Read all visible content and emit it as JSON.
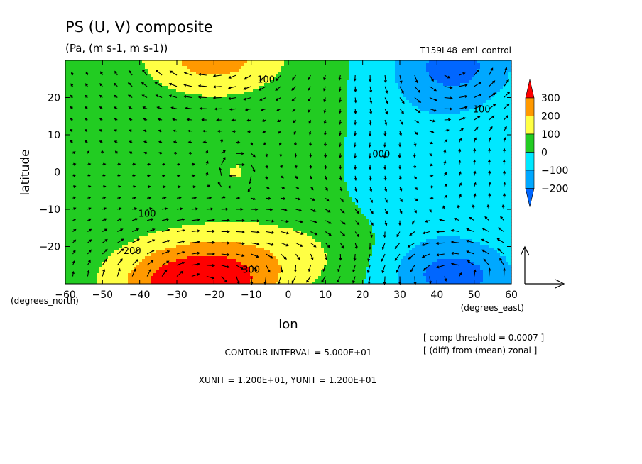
{
  "chart_data": {
    "type": "heatmap",
    "title": "PS (U, V) composite",
    "subtitle": "(Pa, (m s-1, m s-1))",
    "run_label": "T159L48_eml_control",
    "xlabel": "lon",
    "ylabel": "latitude",
    "x_unit_label": "(degrees_east)",
    "y_unit_label": "(degrees_north)",
    "xlim": [
      -60,
      60
    ],
    "ylim": [
      -30,
      30
    ],
    "x_ticks": [
      -60,
      -50,
      -40,
      -30,
      -20,
      -10,
      0,
      10,
      20,
      30,
      40,
      50,
      60
    ],
    "y_ticks": [
      -20,
      -10,
      0,
      10,
      20
    ],
    "x_tick_labels": [
      "−60",
      "−50",
      "−40",
      "−30",
      "−20",
      "−10",
      "0",
      "10",
      "20",
      "30",
      "40",
      "50",
      "60"
    ],
    "y_tick_labels": [
      "−20",
      "−10",
      "0",
      "10",
      "20"
    ],
    "colorbar": {
      "levels": [
        300,
        200,
        100,
        0,
        -100,
        -200
      ],
      "labels": [
        "300",
        "200",
        "100",
        "0",
        "−100",
        "−200"
      ],
      "bin_colors": [
        "#ff0000",
        "#ff9900",
        "#ffff44",
        "#22cc22",
        "#00e8ff",
        "#00a8ff",
        "#0066ff"
      ]
    },
    "contour_labels": [
      {
        "text": "100",
        "x": -6,
        "y": 24
      },
      {
        "text": "100",
        "x": 52,
        "y": 16
      },
      {
        "text": "000",
        "x": 25,
        "y": 4
      },
      {
        "text": "100",
        "x": -38,
        "y": -12
      },
      {
        "text": "200",
        "x": -42,
        "y": -22
      },
      {
        "text": "300",
        "x": -10,
        "y": -27
      }
    ],
    "fields": {
      "ps_anomaly_pa": "zonal-difference surface pressure composite; highs near (-25,-30) and (-20,30), low near (45,-25) and (45,25)",
      "wind_vectors": "u,v composite arrows"
    }
  },
  "notes": {
    "threshold": "[ comp threshold = 0.0007 ]",
    "diff": "[ (diff) from (mean) zonal ]",
    "contour_interval": "CONTOUR INTERVAL = 5.000E+01",
    "units": "XUNIT = 1.200E+01, YUNIT = 1.200E+01"
  }
}
